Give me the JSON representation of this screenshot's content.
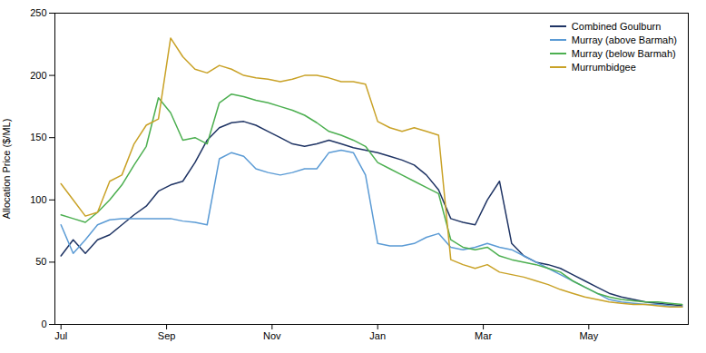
{
  "chart_data": {
    "type": "line",
    "ylabel": "Allocation Price ($/ML)",
    "x": [
      0,
      1,
      2,
      3,
      4,
      5,
      6,
      7,
      8,
      9,
      10,
      11,
      12,
      13,
      14,
      15,
      16,
      17,
      18,
      19,
      20,
      21,
      22,
      23,
      24,
      25,
      26,
      27,
      28,
      29,
      30,
      31,
      32,
      33,
      34,
      35,
      36,
      37,
      38,
      39,
      40,
      41,
      42,
      43,
      44,
      45,
      46,
      47,
      48,
      49,
      50,
      51
    ],
    "xlim": [
      -0.5,
      51.5
    ],
    "xticks": [
      {
        "value": 0,
        "label": "Jul"
      },
      {
        "value": 8.67,
        "label": "Sep"
      },
      {
        "value": 17.33,
        "label": "Nov"
      },
      {
        "value": 26.0,
        "label": "Jan"
      },
      {
        "value": 34.67,
        "label": "Mar"
      },
      {
        "value": 43.33,
        "label": "May"
      }
    ],
    "ylim": [
      0,
      250
    ],
    "yticks": [
      0,
      50,
      100,
      150,
      200,
      250
    ],
    "grid": false,
    "legend": "upper right",
    "series": [
      {
        "name": "Combined Goulburn",
        "color": "#1f3464",
        "values": [
          55,
          68,
          57,
          68,
          72,
          80,
          88,
          95,
          107,
          112,
          115,
          130,
          148,
          158,
          162,
          163,
          160,
          155,
          150,
          145,
          143,
          145,
          148,
          145,
          142,
          140,
          138,
          135,
          132,
          128,
          120,
          108,
          85,
          82,
          80,
          100,
          115,
          65,
          55,
          50,
          48,
          45,
          40,
          35,
          30,
          25,
          22,
          20,
          18,
          17,
          16,
          15
        ]
      },
      {
        "name": "Murray (above Barmah)",
        "color": "#5b9bd5",
        "values": [
          80,
          57,
          68,
          80,
          84,
          85,
          85,
          85,
          85,
          85,
          83,
          82,
          80,
          133,
          138,
          135,
          125,
          122,
          120,
          122,
          125,
          125,
          138,
          140,
          138,
          120,
          65,
          63,
          63,
          65,
          70,
          73,
          62,
          60,
          62,
          65,
          62,
          60,
          55,
          50,
          45,
          40,
          35,
          30,
          25,
          20,
          18,
          17,
          16,
          16,
          15,
          14
        ]
      },
      {
        "name": "Murray (below Barmah)",
        "color": "#4caf50",
        "values": [
          88,
          85,
          82,
          90,
          100,
          112,
          128,
          143,
          182,
          170,
          148,
          150,
          145,
          178,
          185,
          183,
          180,
          178,
          175,
          172,
          168,
          162,
          155,
          152,
          148,
          143,
          130,
          125,
          120,
          115,
          110,
          105,
          68,
          62,
          60,
          62,
          55,
          52,
          50,
          48,
          45,
          42,
          35,
          30,
          25,
          22,
          20,
          19,
          18,
          18,
          17,
          16
        ]
      },
      {
        "name": "Murrumbidgee",
        "color": "#c9a227",
        "values": [
          113,
          100,
          87,
          90,
          115,
          120,
          145,
          160,
          165,
          230,
          215,
          205,
          202,
          208,
          205,
          200,
          198,
          197,
          195,
          197,
          200,
          200,
          198,
          195,
          195,
          193,
          163,
          158,
          155,
          158,
          155,
          152,
          52,
          48,
          45,
          48,
          42,
          40,
          38,
          35,
          32,
          28,
          25,
          22,
          20,
          18,
          17,
          16,
          16,
          15,
          14,
          14
        ]
      }
    ]
  }
}
